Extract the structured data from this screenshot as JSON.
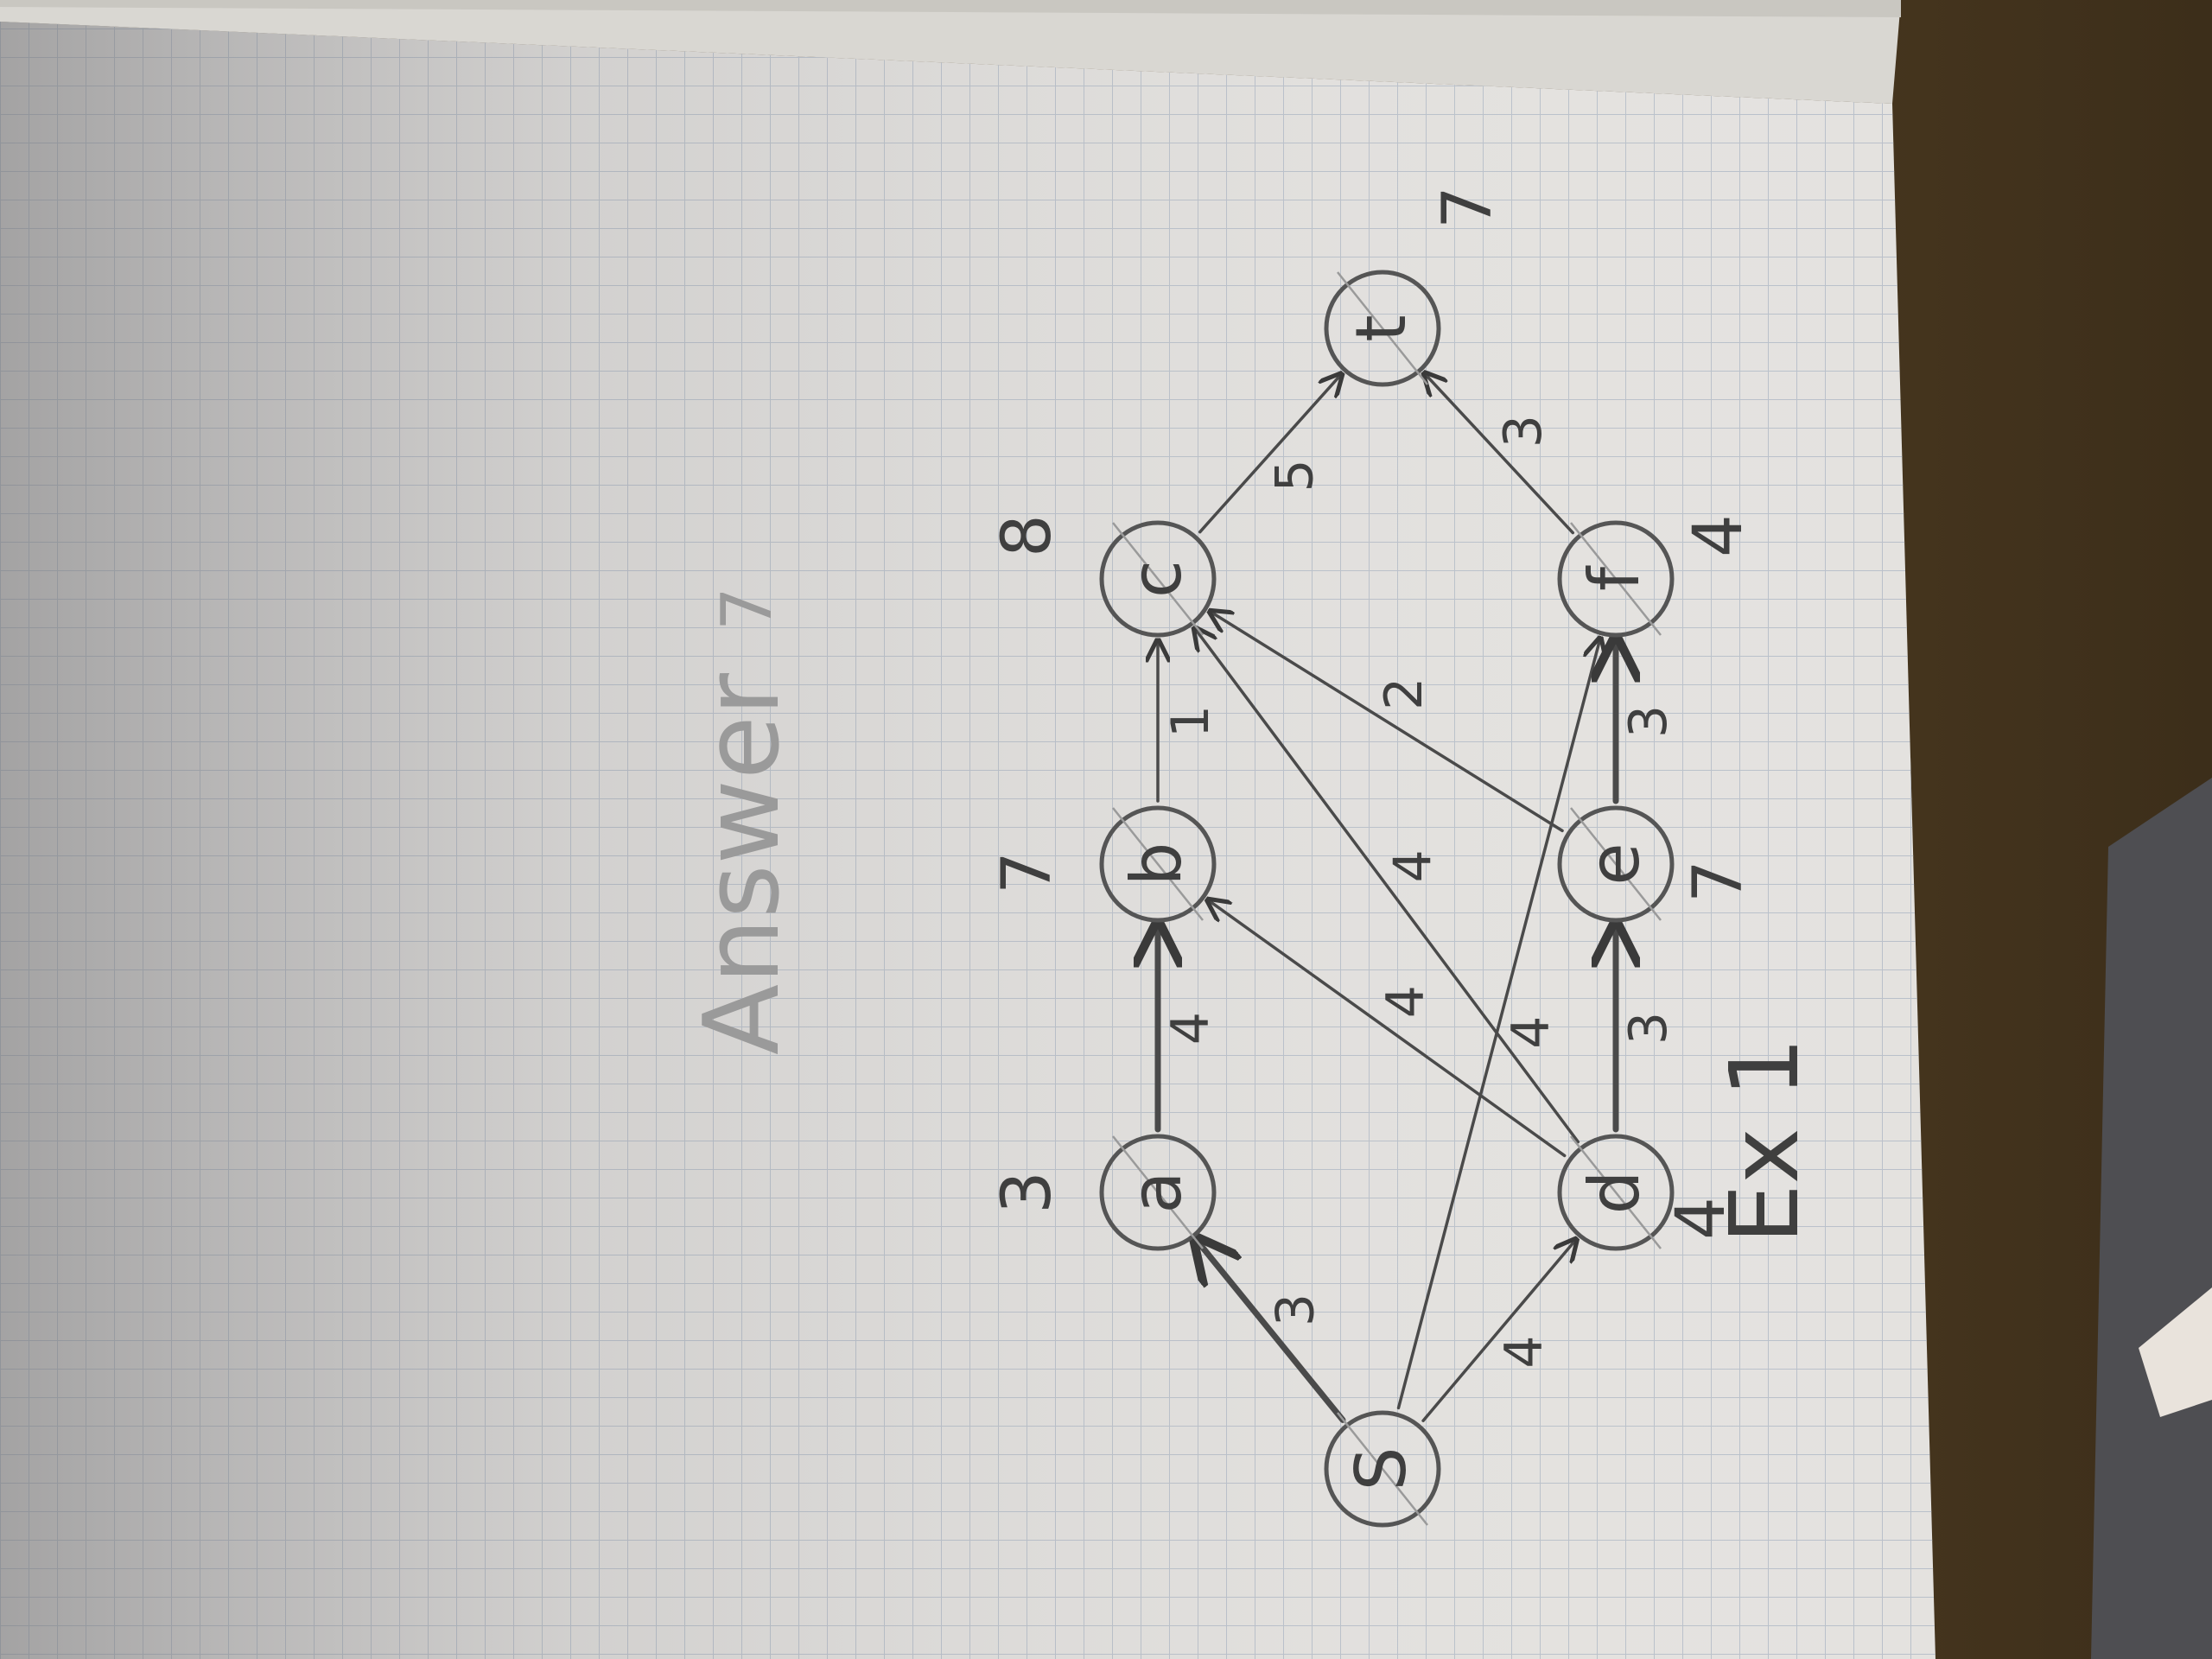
{
  "title": "Ex 1",
  "answer_label": "Answer",
  "answer_value": "7",
  "nodes": [
    {
      "id": "s",
      "label": "S",
      "dist": ""
    },
    {
      "id": "a",
      "label": "a",
      "dist": "3"
    },
    {
      "id": "b",
      "label": "b",
      "dist": "7"
    },
    {
      "id": "c",
      "label": "c",
      "dist": "8"
    },
    {
      "id": "d",
      "label": "d",
      "dist": "4"
    },
    {
      "id": "e",
      "label": "e",
      "dist": "7"
    },
    {
      "id": "f",
      "label": "f",
      "dist": "4"
    },
    {
      "id": "t",
      "label": "t",
      "dist": "7"
    }
  ],
  "edges": [
    {
      "from": "s",
      "to": "a",
      "weight": "3"
    },
    {
      "from": "s",
      "to": "d",
      "weight": "4"
    },
    {
      "from": "s",
      "to": "f",
      "weight": "4"
    },
    {
      "from": "a",
      "to": "b",
      "weight": "4"
    },
    {
      "from": "d",
      "to": "b",
      "weight": "4"
    },
    {
      "from": "d",
      "to": "c",
      "weight": "4"
    },
    {
      "from": "d",
      "to": "e",
      "weight": "3"
    },
    {
      "from": "b",
      "to": "c",
      "weight": "1"
    },
    {
      "from": "e",
      "to": "c",
      "weight": "2"
    },
    {
      "from": "e",
      "to": "f",
      "weight": "3"
    },
    {
      "from": "c",
      "to": "t",
      "weight": "5"
    },
    {
      "from": "f",
      "to": "t",
      "weight": "3"
    }
  ]
}
